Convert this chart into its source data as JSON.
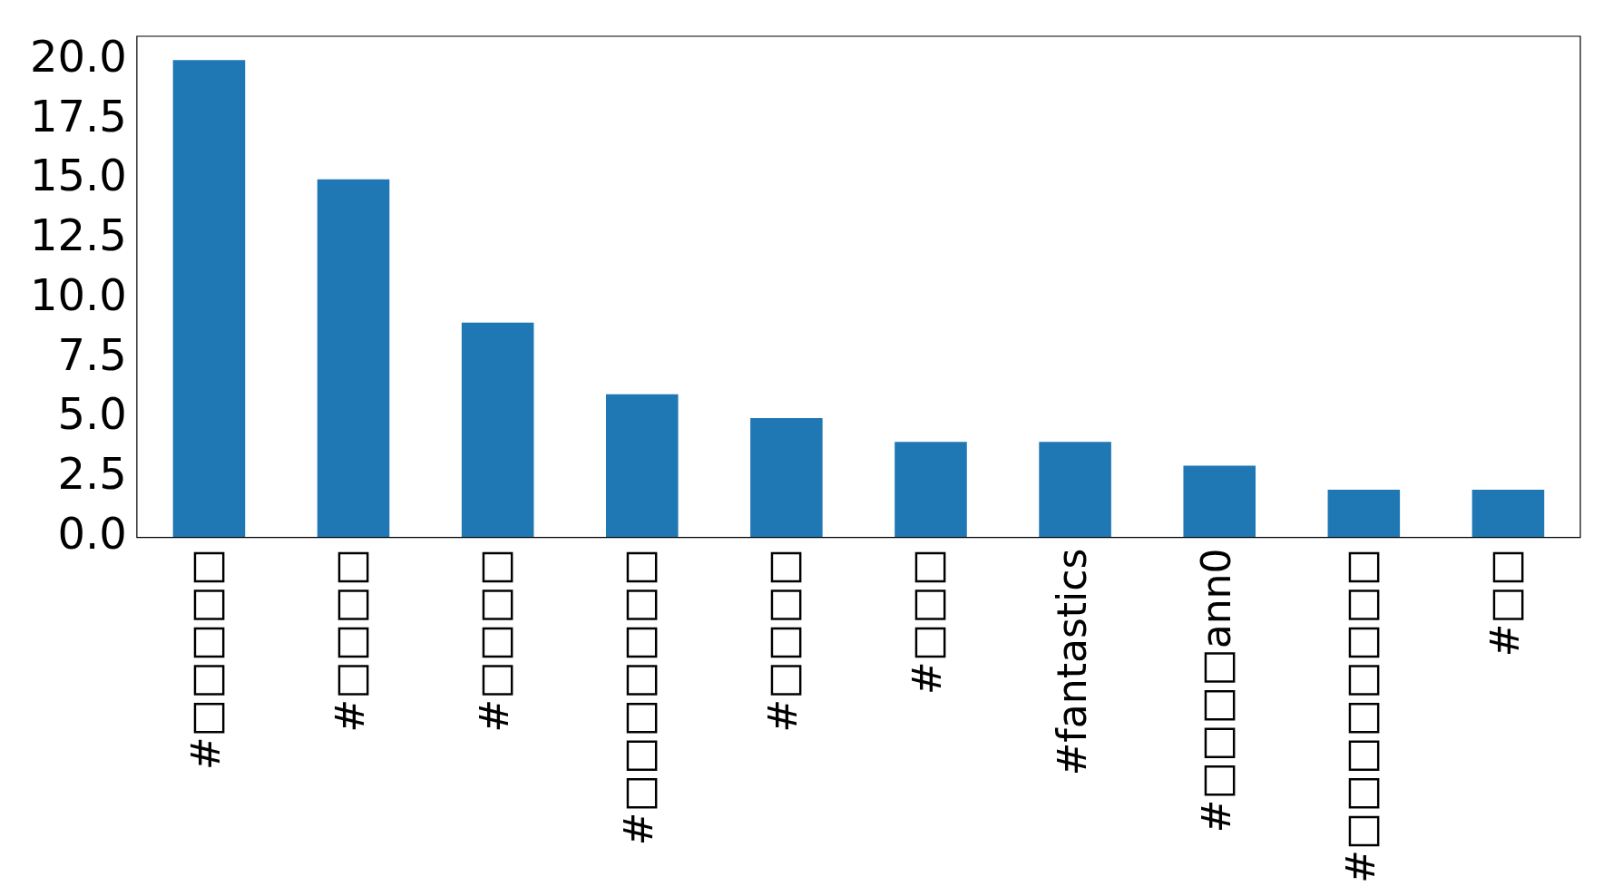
{
  "chart_data": {
    "type": "bar",
    "categories": [
      "#□□□□□",
      "#□□□□",
      "#□□□□",
      "#□□□□□□□",
      "#□□□□",
      "#□□□",
      "#fantastics",
      "#□□□□ann0",
      "#□□□□□□□□",
      "#□□"
    ],
    "values": [
      20,
      15,
      9,
      6,
      5,
      4,
      4,
      3,
      2,
      2
    ],
    "color": "#1f77b4",
    "ylim": [
      0,
      21
    ],
    "yticks": [
      {
        "value": 0,
        "label": "0.0"
      },
      {
        "value": 2.5,
        "label": "2.5"
      },
      {
        "value": 5,
        "label": "5.0"
      },
      {
        "value": 7.5,
        "label": "7.5"
      },
      {
        "value": 10,
        "label": "10.0"
      },
      {
        "value": 12.5,
        "label": "12.5"
      },
      {
        "value": 15,
        "label": "15.0"
      },
      {
        "value": 17.5,
        "label": "17.5"
      },
      {
        "value": 20,
        "label": "20.0"
      }
    ],
    "grid": false
  }
}
